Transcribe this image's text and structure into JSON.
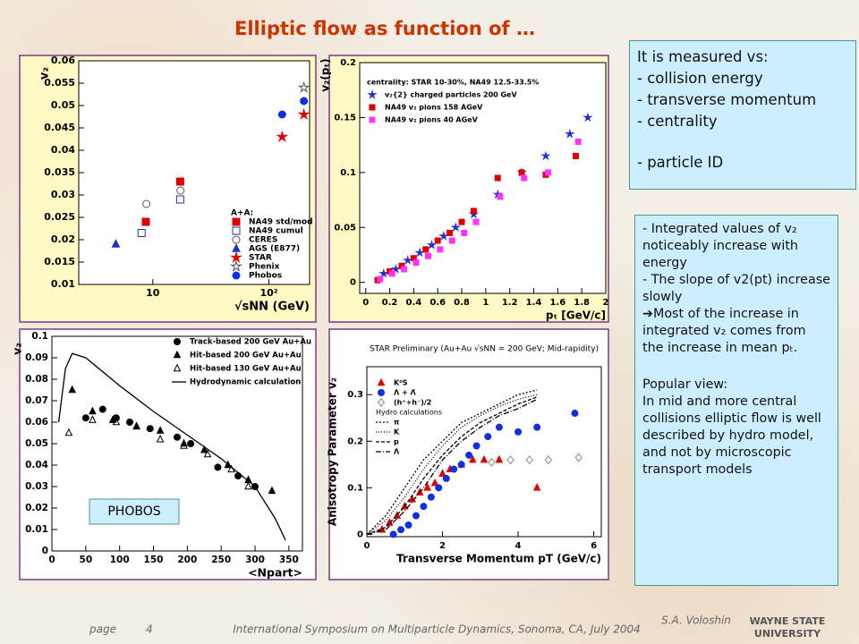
{
  "slide": {
    "title": "Elliptic flow as function of …",
    "box1": [
      "It is measured vs:",
      "- collision energy",
      "- transverse momentum",
      "- centrality",
      "- particle ID"
    ],
    "box2": [
      "- Integrated values of v₂ noticeably increase with energy",
      "- The slope of v2(pt) increase slowly",
      "➔Most of the increase in integrated v₂ comes from the increase in mean pₜ.",
      "Popular view:",
      "In mid and more central collisions elliptic flow is well described by hydro model, and not by microscopic transport models"
    ],
    "footer": {
      "page_label": "page",
      "page": "4",
      "conference": "International Symposium on Multiparticle Dynamics, Sonoma, CA, July 2004",
      "author": "S.A. Voloshin",
      "logo": [
        "WAYNE STATE",
        "UNIVERSITY"
      ]
    }
  },
  "chart_data": [
    {
      "type": "scatter",
      "ylabel": "v₂",
      "xlabel": "√sNN (GeV)",
      "xlog": true,
      "xlim": [
        2.3,
        224
      ],
      "ylim": [
        0.01,
        0.06
      ],
      "xticks": [
        10,
        {
          "value": 100,
          "label": "10²"
        }
      ],
      "yticks": [
        0.01,
        0.015,
        0.02,
        0.025,
        0.03,
        0.035,
        0.04,
        0.045,
        0.05,
        0.055,
        0.06
      ],
      "legend_title": "A+A:",
      "series": [
        {
          "name": "NA49 std/mod",
          "color": "#e00000",
          "marker": "square",
          "filled": true,
          "x": [
            8.7,
            17.2
          ],
          "values": [
            0.024,
            0.033
          ]
        },
        {
          "name": "NA49 cumul",
          "color": "#2030c0",
          "marker": "square",
          "filled": false,
          "x": [
            8,
            17.2
          ],
          "values": [
            0.0215,
            0.029
          ]
        },
        {
          "name": "CERES",
          "color": "#555555",
          "marker": "circle",
          "filled": false,
          "x": [
            8.8,
            17.3
          ],
          "values": [
            0.028,
            0.031
          ]
        },
        {
          "name": "AGS (E877)",
          "color": "#2030c0",
          "marker": "triangle",
          "filled": true,
          "x": [
            4.8
          ],
          "values": [
            0.019
          ]
        },
        {
          "name": "STAR",
          "color": "#e00000",
          "marker": "star",
          "filled": true,
          "x": [
            130,
            200
          ],
          "values": [
            0.043,
            0.048
          ]
        },
        {
          "name": "Phenix",
          "color": "#555555",
          "marker": "star",
          "filled": false,
          "x": [
            200
          ],
          "values": [
            0.054
          ]
        },
        {
          "name": "Phobos",
          "color": "#1030e0",
          "marker": "circle",
          "filled": true,
          "x": [
            130,
            200
          ],
          "values": [
            0.048,
            0.051
          ]
        }
      ]
    },
    {
      "type": "scatter",
      "ylabel": "v₂(pₜ)",
      "xlabel": "pₜ [GeV/c]",
      "xlim": [
        -0.05,
        2
      ],
      "ylim": [
        -0.01,
        0.2
      ],
      "xticks": [
        0,
        0.2,
        0.4,
        0.6,
        0.8,
        1,
        1.2,
        1.4,
        1.6,
        1.8,
        2
      ],
      "yticks": [
        0,
        0.05,
        0.1,
        0.15,
        0.2
      ],
      "legend_title": "centrality: STAR 10-30%, NA49 12.5-33.5%",
      "series": [
        {
          "name": "v₂{2} charged particles 200 GeV",
          "color": "#2030d0",
          "marker": "star",
          "filled": true,
          "x": [
            0.15,
            0.25,
            0.35,
            0.45,
            0.55,
            0.65,
            0.75,
            0.9,
            1.1,
            1.3,
            1.5,
            1.7,
            1.85
          ],
          "values": [
            0.008,
            0.012,
            0.02,
            0.027,
            0.034,
            0.042,
            0.05,
            0.062,
            0.08,
            0.1,
            0.115,
            0.135,
            0.15
          ]
        },
        {
          "name": "NA49 v₂ pions 158 AGeV",
          "color": "#e00000",
          "marker": "square",
          "filled": true,
          "x": [
            0.1,
            0.2,
            0.3,
            0.4,
            0.5,
            0.6,
            0.7,
            0.8,
            0.9,
            1.1,
            1.3,
            1.5,
            1.75
          ],
          "values": [
            0.002,
            0.01,
            0.015,
            0.022,
            0.03,
            0.038,
            0.045,
            0.055,
            0.065,
            0.095,
            0.1,
            0.098,
            0.115
          ]
        },
        {
          "name": "NA49 v₂ pions 40 AGeV",
          "color": "#ff33ff",
          "marker": "square",
          "filled": true,
          "x": [
            0.12,
            0.22,
            0.32,
            0.42,
            0.52,
            0.62,
            0.72,
            0.82,
            0.92,
            1.12,
            1.32,
            1.52,
            1.77
          ],
          "values": [
            0.003,
            0.008,
            0.012,
            0.018,
            0.024,
            0.03,
            0.038,
            0.045,
            0.055,
            0.078,
            0.095,
            0.1,
            0.128
          ]
        }
      ]
    },
    {
      "type": "scatter",
      "ylabel": "v₂",
      "xlabel": "<Npart>",
      "xlim": [
        0,
        370
      ],
      "ylim": [
        0,
        0.1
      ],
      "xticks": [
        0,
        50,
        100,
        150,
        200,
        250,
        300,
        350
      ],
      "yticks": [
        0,
        0.01,
        0.02,
        0.03,
        0.04,
        0.05,
        0.06,
        0.07,
        0.08,
        0.09,
        0.1
      ],
      "annotation": "PHOBOS",
      "series": [
        {
          "name": "Track-based 200 GeV Au+Au",
          "color": "#000000",
          "marker": "circle",
          "filled": true,
          "x": [
            50,
            75,
            95,
            115,
            145,
            185,
            205,
            245,
            275,
            300
          ],
          "values": [
            0.062,
            0.066,
            0.062,
            0.06,
            0.057,
            0.053,
            0.05,
            0.039,
            0.035,
            0.03
          ]
        },
        {
          "name": "Hit-based 200 GeV Au+Au",
          "color": "#000000",
          "marker": "triangle",
          "filled": true,
          "x": [
            30,
            60,
            90,
            125,
            160,
            195,
            225,
            260,
            290,
            325
          ],
          "values": [
            0.075,
            0.065,
            0.061,
            0.058,
            0.056,
            0.05,
            0.047,
            0.04,
            0.033,
            0.028
          ]
        },
        {
          "name": "Hit-based 130 GeV Au+Au",
          "color": "#000000",
          "marker": "triangle",
          "filled": false,
          "x": [
            25,
            60,
            95,
            125,
            160,
            195,
            230,
            265,
            290
          ],
          "values": [
            0.055,
            0.061,
            0.06,
            0.058,
            0.052,
            0.049,
            0.045,
            0.038,
            0.03
          ]
        },
        {
          "name": "Hydrodynamic calculation",
          "color": "#000000",
          "marker": "line",
          "x": [
            10,
            20,
            30,
            50,
            100,
            150,
            200,
            250,
            300,
            330,
            345
          ],
          "values": [
            0.06,
            0.085,
            0.092,
            0.09,
            0.077,
            0.065,
            0.054,
            0.043,
            0.03,
            0.015,
            0.005
          ]
        }
      ]
    },
    {
      "type": "scatter",
      "title": "STAR Preliminary (Au+Au √sNN = 200 GeV; Mid-rapidity)",
      "ylabel": "Anisotropy Parameter v₂",
      "xlabel": "Transverse Momentum pT (GeV/c)",
      "xlim": [
        0,
        6.2
      ],
      "ylim": [
        -0.005,
        0.36
      ],
      "xticks": [
        0,
        2,
        4,
        6
      ],
      "yticks": [
        0,
        0.1,
        0.2,
        0.3
      ],
      "legend_subtitle": "Hydro calculations",
      "series": [
        {
          "name": "K⁰S",
          "color": "#e00000",
          "marker": "triangle",
          "filled": true,
          "x": [
            0.4,
            0.6,
            0.8,
            1,
            1.2,
            1.4,
            1.6,
            1.8,
            2,
            2.2,
            2.5,
            2.8,
            3.1,
            3.5,
            4.5
          ],
          "values": [
            0.01,
            0.025,
            0.04,
            0.06,
            0.075,
            0.09,
            0.1,
            0.11,
            0.13,
            0.14,
            0.15,
            0.16,
            0.16,
            0.16,
            0.1
          ]
        },
        {
          "name": "Λ + Λ̄",
          "color": "#1030e0",
          "marker": "circle",
          "filled": true,
          "x": [
            0.7,
            0.9,
            1.1,
            1.3,
            1.5,
            1.7,
            1.9,
            2.1,
            2.3,
            2.5,
            2.7,
            2.9,
            3.2,
            3.5,
            4,
            4.5,
            5.5
          ],
          "values": [
            0,
            0.01,
            0.02,
            0.04,
            0.06,
            0.08,
            0.1,
            0.12,
            0.14,
            0.15,
            0.17,
            0.19,
            0.21,
            0.23,
            0.22,
            0.23,
            0.26
          ]
        },
        {
          "name": "(h⁺+h⁻)/2",
          "color": "#888888",
          "marker": "diamond",
          "filled": false,
          "x": [
            3.3,
            3.8,
            4.3,
            4.8,
            5.6
          ],
          "values": [
            0.155,
            0.16,
            0.16,
            0.16,
            0.165
          ]
        },
        {
          "name": "π",
          "color": "#000000",
          "marker": "line",
          "dash": "2,2",
          "x": [
            0,
            0.5,
            1,
            1.5,
            2,
            2.5,
            3,
            3.5,
            4,
            4.5
          ],
          "values": [
            0,
            0.04,
            0.1,
            0.16,
            0.2,
            0.24,
            0.26,
            0.28,
            0.3,
            0.31
          ]
        },
        {
          "name": "K",
          "color": "#000000",
          "marker": "line",
          "dash": "1,2",
          "x": [
            0,
            0.5,
            1,
            1.5,
            2,
            2.5,
            3,
            3.5,
            4,
            4.5
          ],
          "values": [
            0,
            0.03,
            0.08,
            0.14,
            0.19,
            0.23,
            0.255,
            0.275,
            0.29,
            0.3
          ]
        },
        {
          "name": "p",
          "color": "#000000",
          "marker": "line",
          "dash": "4,2",
          "x": [
            0,
            0.5,
            1,
            1.5,
            2,
            2.5,
            3,
            3.5,
            4,
            4.5
          ],
          "values": [
            0,
            0.015,
            0.06,
            0.12,
            0.17,
            0.21,
            0.24,
            0.26,
            0.28,
            0.295
          ]
        },
        {
          "name": "Λ",
          "color": "#000000",
          "marker": "line",
          "dash": "6,2,1,2",
          "x": [
            0,
            0.5,
            1,
            1.5,
            2,
            2.5,
            3,
            3.5,
            4,
            4.5
          ],
          "values": [
            0,
            0.01,
            0.05,
            0.1,
            0.16,
            0.2,
            0.23,
            0.255,
            0.27,
            0.29
          ]
        }
      ]
    }
  ]
}
